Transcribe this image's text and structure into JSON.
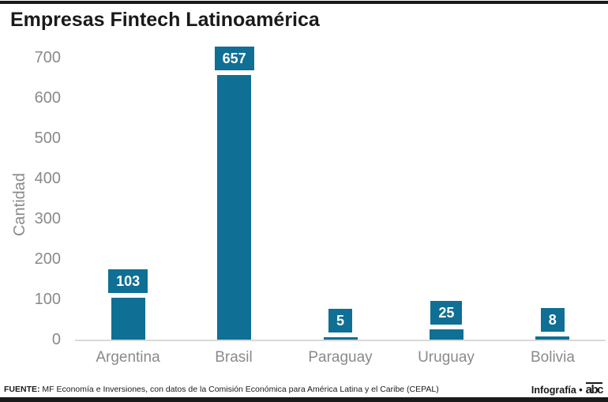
{
  "page": {
    "title": "Empresas Fintech Latinoamérica"
  },
  "chart_data": {
    "type": "bar",
    "title": "Empresas Fintech Latinoamérica",
    "categories": [
      "Argentina",
      "Brasil",
      "Paraguay",
      "Uruguay",
      "Bolivia"
    ],
    "values": [
      103,
      657,
      5,
      25,
      8
    ],
    "xlabel": "",
    "ylabel": "Cantidad",
    "ylim": [
      0,
      700
    ],
    "yticks": [
      0,
      100,
      200,
      300,
      400,
      500,
      600,
      700
    ],
    "grid": false,
    "legend": false,
    "value_labels": "boxed above bars",
    "bar_color": "#0f6f94",
    "value_label_text_color": "#ffffff"
  },
  "footer": {
    "source_label": "FUENTE:",
    "source_text": " MF Economía e Inversiones, con datos de la Comisión Económica para América Latina y el Caribe (CEPAL)",
    "credit_text": "Infografía •",
    "brand": "abc"
  },
  "colors": {
    "accent": "#0f6f94",
    "axis_text": "#8a8a8a",
    "title_text": "#1a1a1a",
    "baseline": "#d9d9d9",
    "rule": "#1a1a1a"
  }
}
